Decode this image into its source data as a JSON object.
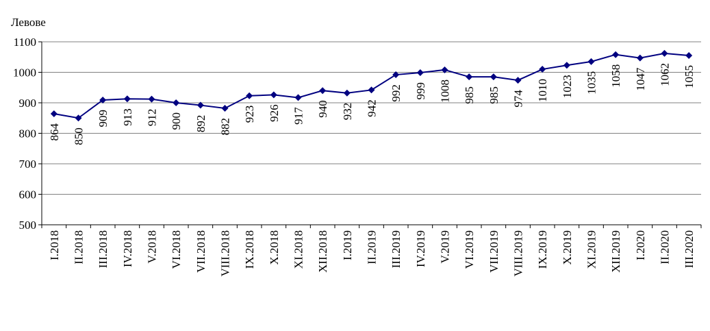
{
  "chart_data": {
    "type": "line",
    "ylabel": "Левове",
    "ylim": [
      500,
      1100
    ],
    "yticks": [
      500,
      600,
      700,
      800,
      900,
      1000,
      1100
    ],
    "grid": true,
    "categories": [
      "I.2018",
      "II.2018",
      "III.2018",
      "IV.2018",
      "V.2018",
      "VI.2018",
      "VII.2018",
      "VIII.2018",
      "IX.2018",
      "X.2018",
      "XI.2018",
      "XII.2018",
      "I.2019",
      "II.2019",
      "III.2019",
      "IV.2019",
      "V.2019",
      "VI.2019",
      "VII.2019",
      "VIII.2019",
      "IX.2019",
      "X.2019",
      "XI.2019",
      "XII.2019",
      "I.2020",
      "II.2020",
      "III.2020"
    ],
    "values": [
      864,
      850,
      909,
      913,
      912,
      900,
      892,
      882,
      923,
      926,
      917,
      940,
      932,
      942,
      992,
      999,
      1008,
      985,
      985,
      974,
      1010,
      1023,
      1035,
      1058,
      1047,
      1062,
      1055
    ],
    "colors": {
      "line": "#000080",
      "marker": "#000080",
      "grid": "#808080"
    }
  }
}
